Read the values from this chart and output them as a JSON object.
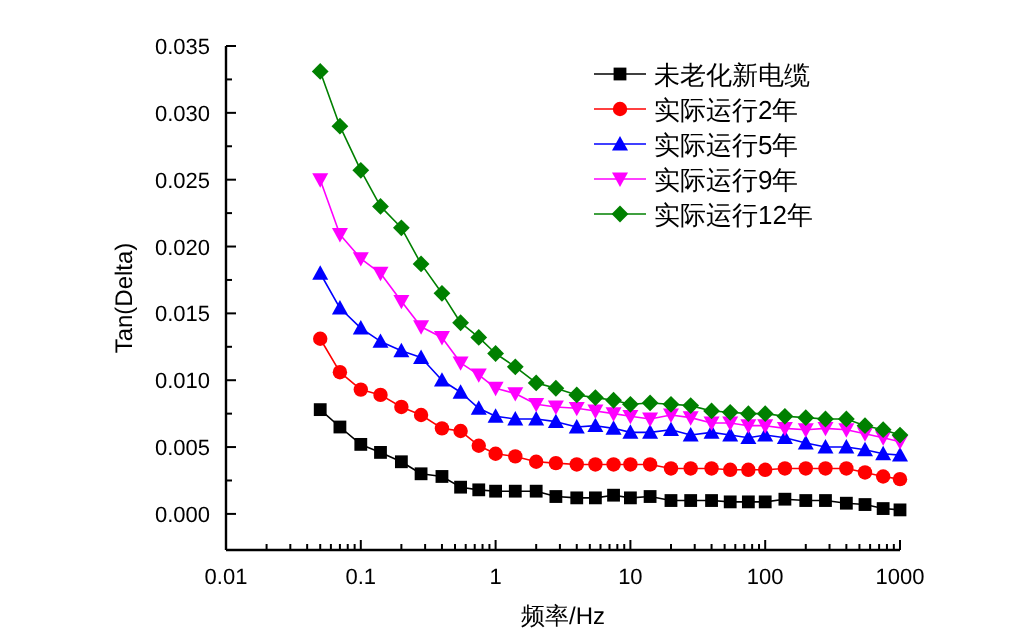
{
  "chart_data": {
    "type": "line",
    "xlabel": "频率/Hz",
    "ylabel": "Tan(Delta)",
    "log": "x",
    "legend": "top right",
    "grid": false,
    "x": [
      0.05,
      0.07,
      0.1,
      0.14,
      0.2,
      0.28,
      0.4,
      0.55,
      0.75,
      1,
      1.4,
      2,
      2.8,
      4,
      5.5,
      7.5,
      10,
      14,
      20,
      28,
      40,
      55,
      75,
      100,
      140,
      200,
      280,
      400,
      550,
      750,
      1000
    ],
    "xlim": [
      0.01,
      1000
    ],
    "xticks": [
      0.01,
      0.1,
      1,
      10,
      100,
      1000
    ],
    "ylim": [
      -0.0027,
      0.035
    ],
    "yticks": [
      {
        "value": 0,
        "label": "0.000"
      },
      {
        "value": 0.005,
        "label": "0.005"
      },
      {
        "value": 0.01,
        "label": "0.010"
      },
      {
        "value": 0.015,
        "label": "0.015"
      },
      {
        "value": 0.02,
        "label": "0.020"
      },
      {
        "value": 0.025,
        "label": "0.025"
      },
      {
        "value": 0.03,
        "label": "0.030"
      },
      {
        "value": 0.035,
        "label": "0.035"
      }
    ],
    "series": [
      {
        "name": "未老化新电缆",
        "color": "#000000",
        "marker": "square",
        "values": [
          0.0078,
          0.0065,
          0.0052,
          0.0046,
          0.0039,
          0.003,
          0.0028,
          0.002,
          0.0018,
          0.0017,
          0.0017,
          0.0017,
          0.0013,
          0.0012,
          0.0012,
          0.0014,
          0.0012,
          0.0013,
          0.001,
          0.001,
          0.001,
          0.0009,
          0.0009,
          0.0009,
          0.0011,
          0.001,
          0.001,
          0.0008,
          0.0007,
          0.0004,
          0.0003
        ]
      },
      {
        "name": "实际运行2年",
        "color": "#ff0000",
        "marker": "circle",
        "values": [
          0.0131,
          0.0106,
          0.0093,
          0.0089,
          0.008,
          0.0074,
          0.0064,
          0.0062,
          0.0051,
          0.0045,
          0.0043,
          0.0039,
          0.0038,
          0.0037,
          0.0037,
          0.0037,
          0.0037,
          0.0037,
          0.0034,
          0.0034,
          0.0034,
          0.0033,
          0.0033,
          0.0033,
          0.0034,
          0.0034,
          0.0034,
          0.0034,
          0.0031,
          0.0028,
          0.0026
        ]
      },
      {
        "name": "实际运行5年",
        "color": "#0000ff",
        "marker": "triangle",
        "values": [
          0.018,
          0.0154,
          0.0139,
          0.0129,
          0.0122,
          0.0117,
          0.01,
          0.0091,
          0.0079,
          0.0073,
          0.0071,
          0.0071,
          0.0069,
          0.0065,
          0.0066,
          0.0064,
          0.0061,
          0.0061,
          0.0063,
          0.0059,
          0.0061,
          0.0059,
          0.0057,
          0.0059,
          0.0057,
          0.0053,
          0.005,
          0.005,
          0.0048,
          0.0045,
          0.0044
        ]
      },
      {
        "name": "实际运行9年",
        "color": "#ff00ff",
        "marker": "triangle-down",
        "values": [
          0.025,
          0.0209,
          0.0191,
          0.018,
          0.0159,
          0.014,
          0.0132,
          0.0113,
          0.0104,
          0.0094,
          0.009,
          0.0082,
          0.008,
          0.0079,
          0.0077,
          0.0075,
          0.0073,
          0.0071,
          0.0074,
          0.0072,
          0.0068,
          0.0068,
          0.0066,
          0.0066,
          0.0064,
          0.0063,
          0.0064,
          0.0063,
          0.006,
          0.0057,
          0.0054
        ]
      },
      {
        "name": "实际运行12年",
        "color": "#008000",
        "marker": "diamond",
        "values": [
          0.0331,
          0.029,
          0.0257,
          0.023,
          0.0214,
          0.0187,
          0.0165,
          0.0143,
          0.0132,
          0.012,
          0.011,
          0.0098,
          0.0094,
          0.0089,
          0.0087,
          0.0085,
          0.0082,
          0.0083,
          0.0082,
          0.0081,
          0.0077,
          0.0076,
          0.0075,
          0.0075,
          0.0073,
          0.0072,
          0.0071,
          0.0071,
          0.0066,
          0.0063,
          0.0059
        ]
      }
    ]
  }
}
